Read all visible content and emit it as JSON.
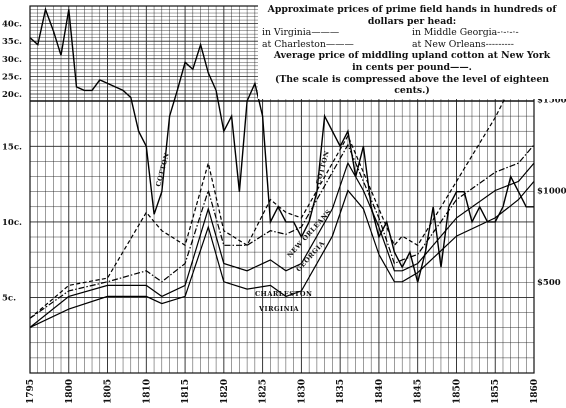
{
  "chart_data": {
    "type": "line",
    "caption": {
      "line1": "Approximate prices of prime field hands in hundreds of",
      "line2": "dollars per head:",
      "virginia": "in Virginia———",
      "middle_georgia": "in Middle Georgia-·-·-·-",
      "charleston": "at Charleston———",
      "new_orleans": "at New Orleans---------",
      "cotton1": "Average price of middling upland cotton at New York",
      "cotton2": "in cents per pound——.",
      "note1": "(The scale is compressed above the level of eighteen",
      "note2": "cents.)"
    },
    "x_ticks": [
      "1795",
      "1800",
      "1805",
      "1810",
      "1815",
      "1820",
      "1825",
      "1830",
      "1835",
      "1840",
      "1845",
      "1850",
      "1855",
      "1860"
    ],
    "x_range": [
      1795,
      1860
    ],
    "y_left_ticks": [
      "5c.",
      "10c.",
      "15c.",
      "20c.",
      "25c.",
      "30c.",
      "35c.",
      "40c."
    ],
    "y_right_ticks": [
      "$500",
      "$1000",
      "$1500"
    ],
    "series_labels": {
      "cotton": "COTTON",
      "new_orleans": "NEW ORLEANS",
      "georgia": "GEORGIA",
      "charleston": "CHARLESTON",
      "virginia": "VIRGINIA"
    },
    "cotton": {
      "x": [
        1795,
        1796,
        1797,
        1798,
        1799,
        1800,
        1801,
        1802,
        1803,
        1804,
        1805,
        1806,
        1807,
        1808,
        1809,
        1810,
        1811,
        1812,
        1813,
        1814,
        1815,
        1816,
        1817,
        1818,
        1819,
        1820,
        1821,
        1822,
        1823,
        1824,
        1825,
        1826,
        1827,
        1828,
        1829,
        1830,
        1831,
        1832,
        1833,
        1834,
        1835,
        1836,
        1837,
        1838,
        1839,
        1840,
        1841,
        1842,
        1843,
        1844,
        1845,
        1846,
        1847,
        1848,
        1849,
        1850,
        1851,
        1852,
        1853,
        1854,
        1855,
        1856,
        1857,
        1858,
        1859,
        1860
      ],
      "y": [
        36,
        34,
        44,
        38,
        31,
        44,
        22,
        21,
        21,
        24,
        23,
        22,
        21,
        19,
        16,
        15,
        10.5,
        12,
        17,
        21,
        29,
        27,
        34,
        26,
        21,
        16,
        17,
        12,
        18,
        23,
        17,
        10,
        11,
        10,
        10,
        9,
        10,
        12,
        17,
        16,
        15,
        16,
        13,
        15,
        11,
        9,
        10,
        8,
        7,
        8,
        6,
        8,
        11,
        7,
        11,
        12,
        12,
        10,
        11,
        10,
        10,
        11,
        13,
        12,
        11,
        11
      ]
    },
    "new_orleans": {
      "x": [
        1795,
        1800,
        1805,
        1810,
        1812,
        1815,
        1818,
        1820,
        1823,
        1826,
        1828,
        1830,
        1834,
        1836,
        1838,
        1840,
        1842,
        1843,
        1845,
        1850,
        1855,
        1858,
        1860
      ],
      "y": [
        300,
        480,
        520,
        880,
        780,
        700,
        1150,
        780,
        700,
        950,
        880,
        850,
        1150,
        1300,
        1100,
        900,
        700,
        750,
        700,
        1050,
        1400,
        1650,
        1900
      ]
    },
    "georgia": {
      "x": [
        1795,
        1800,
        1805,
        1810,
        1812,
        1815,
        1818,
        1820,
        1823,
        1826,
        1828,
        1830,
        1834,
        1836,
        1838,
        1840,
        1842,
        1843,
        1845,
        1850,
        1855,
        1858,
        1860
      ],
      "y": [
        300,
        450,
        500,
        560,
        500,
        600,
        1000,
        700,
        700,
        780,
        760,
        800,
        1100,
        1250,
        1050,
        850,
        600,
        620,
        650,
        950,
        1100,
        1150,
        1250
      ]
    },
    "charleston": {
      "x": [
        1795,
        1800,
        1805,
        1810,
        1812,
        1815,
        1818,
        1820,
        1823,
        1826,
        1828,
        1830,
        1834,
        1836,
        1838,
        1840,
        1842,
        1843,
        1845,
        1850,
        1855,
        1858,
        1860
      ],
      "y": [
        250,
        420,
        480,
        480,
        420,
        480,
        900,
        600,
        560,
        620,
        560,
        600,
        900,
        1150,
        1000,
        800,
        560,
        560,
        600,
        850,
        1000,
        1050,
        1150
      ]
    },
    "virginia": {
      "x": [
        1795,
        1800,
        1805,
        1810,
        1812,
        1815,
        1818,
        1820,
        1823,
        1826,
        1828,
        1830,
        1834,
        1836,
        1838,
        1840,
        1842,
        1843,
        1845,
        1850,
        1855,
        1858,
        1860
      ],
      "y": [
        250,
        350,
        420,
        420,
        380,
        420,
        800,
        500,
        460,
        480,
        420,
        450,
        750,
        1000,
        900,
        650,
        500,
        500,
        550,
        750,
        850,
        950,
        1050
      ]
    }
  }
}
